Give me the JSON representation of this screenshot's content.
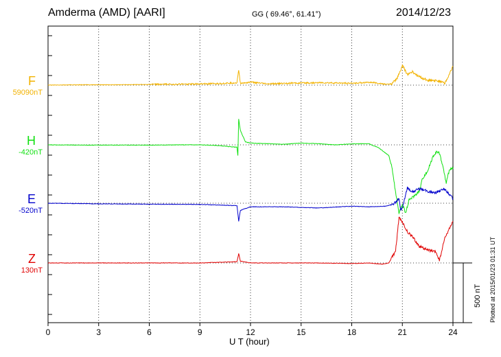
{
  "header": {
    "station": "Amderma (AMD)  [AARI]",
    "coords": "GG ( 69.46°,  61.41°)",
    "date": "2014/12/23"
  },
  "x_axis_title": "U T (hour)",
  "plotted_note": "Plotted at 2015/01/23 01:31  UT",
  "scale_bar_label": "500 nT",
  "channels": [
    {
      "id": "F",
      "label": "F",
      "baseline": "59090nT",
      "color": "#f2b200"
    },
    {
      "id": "H",
      "label": "H",
      "baseline": "-420nT",
      "color": "#10e010"
    },
    {
      "id": "E",
      "label": "E",
      "baseline": "-520nT",
      "color": "#0000cc"
    },
    {
      "id": "Z",
      "label": "Z",
      "baseline": "130nT",
      "color": "#e00000"
    }
  ],
  "chart_data": {
    "type": "line",
    "title": "Amderma (AMD)  [AARI]",
    "xlabel": "U T (hour)",
    "xlim": [
      0,
      24
    ],
    "x_ticks": [
      0,
      3,
      6,
      9,
      12,
      15,
      18,
      21,
      24
    ],
    "grid": true,
    "units": "nT",
    "scale_bar_nT": 500,
    "series": [
      {
        "name": "F",
        "baseline": 59090,
        "points": [
          [
            0,
            0
          ],
          [
            2,
            3
          ],
          [
            4,
            3
          ],
          [
            6,
            6
          ],
          [
            8,
            8
          ],
          [
            10,
            12
          ],
          [
            11.2,
            20
          ],
          [
            11.3,
            130
          ],
          [
            11.4,
            15
          ],
          [
            12,
            25
          ],
          [
            13,
            10
          ],
          [
            14,
            15
          ],
          [
            16,
            20
          ],
          [
            18,
            15
          ],
          [
            19,
            25
          ],
          [
            20,
            8
          ],
          [
            20.4,
            10
          ],
          [
            20.7,
            60
          ],
          [
            20.9,
            125
          ],
          [
            21,
            165
          ],
          [
            21.3,
            90
          ],
          [
            21.6,
            110
          ],
          [
            22,
            70
          ],
          [
            22.5,
            40
          ],
          [
            23,
            35
          ],
          [
            23.4,
            30
          ],
          [
            23.5,
            15
          ],
          [
            23.7,
            60
          ],
          [
            24,
            160
          ]
        ]
      },
      {
        "name": "H",
        "baseline": -420,
        "points": [
          [
            0,
            0
          ],
          [
            2,
            -2
          ],
          [
            4,
            -2
          ],
          [
            6,
            -2
          ],
          [
            8,
            0
          ],
          [
            9,
            0
          ],
          [
            10,
            -5
          ],
          [
            11.2,
            -20
          ],
          [
            11.25,
            -90
          ],
          [
            11.3,
            215
          ],
          [
            11.4,
            120
          ],
          [
            11.7,
            25
          ],
          [
            12,
            15
          ],
          [
            13,
            10
          ],
          [
            14,
            5
          ],
          [
            15,
            15
          ],
          [
            16,
            10
          ],
          [
            17,
            0
          ],
          [
            18,
            8
          ],
          [
            19,
            10
          ],
          [
            19.6,
            -25
          ],
          [
            20.2,
            -90
          ],
          [
            20.4,
            -200
          ],
          [
            20.6,
            -400
          ],
          [
            20.8,
            -570
          ],
          [
            21,
            -500
          ],
          [
            21.2,
            -570
          ],
          [
            21.4,
            -460
          ],
          [
            21.6,
            -440
          ],
          [
            22,
            -390
          ],
          [
            22.2,
            -280
          ],
          [
            22.5,
            -220
          ],
          [
            22.8,
            -100
          ],
          [
            23,
            -60
          ],
          [
            23.2,
            -70
          ],
          [
            23.4,
            -180
          ],
          [
            23.6,
            -320
          ],
          [
            23.8,
            -200
          ],
          [
            24,
            -200
          ]
        ]
      },
      {
        "name": "E",
        "baseline": -520,
        "points": [
          [
            0,
            0
          ],
          [
            3,
            -5
          ],
          [
            6,
            -8
          ],
          [
            9,
            -10
          ],
          [
            10,
            -15
          ],
          [
            11.2,
            -20
          ],
          [
            11.3,
            -150
          ],
          [
            11.4,
            -60
          ],
          [
            12,
            -30
          ],
          [
            14,
            -30
          ],
          [
            16,
            -40
          ],
          [
            18,
            -25
          ],
          [
            19,
            -30
          ],
          [
            20,
            -25
          ],
          [
            20.5,
            -5
          ],
          [
            20.8,
            40
          ],
          [
            20.9,
            -60
          ],
          [
            21,
            -40
          ],
          [
            21.3,
            130
          ],
          [
            21.6,
            95
          ],
          [
            22,
            120
          ],
          [
            22.5,
            100
          ],
          [
            23,
            90
          ],
          [
            23.5,
            120
          ],
          [
            24,
            40
          ]
        ]
      },
      {
        "name": "Z",
        "baseline": 130,
        "points": [
          [
            0,
            0
          ],
          [
            3,
            0
          ],
          [
            6,
            0
          ],
          [
            9,
            0
          ],
          [
            11.2,
            10
          ],
          [
            11.3,
            80
          ],
          [
            11.4,
            15
          ],
          [
            12,
            0
          ],
          [
            14,
            0
          ],
          [
            16,
            0
          ],
          [
            18,
            -5
          ],
          [
            19,
            0
          ],
          [
            19.8,
            -10
          ],
          [
            20.2,
            0
          ],
          [
            20.6,
            100
          ],
          [
            20.8,
            380
          ],
          [
            21,
            340
          ],
          [
            21.3,
            260
          ],
          [
            21.6,
            220
          ],
          [
            22,
            140
          ],
          [
            22.5,
            110
          ],
          [
            23,
            90
          ],
          [
            23.2,
            20
          ],
          [
            23.5,
            200
          ],
          [
            24,
            350
          ]
        ]
      }
    ]
  }
}
